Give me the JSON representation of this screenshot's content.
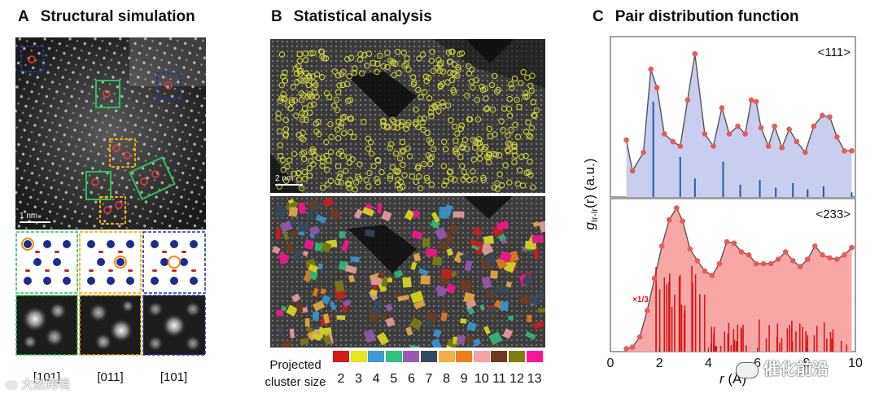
{
  "panels": {
    "a": {
      "letter": "A",
      "title": "Structural simulation",
      "scale_bar": "1 nm",
      "orientations": [
        "[101]",
        "[011]",
        "[101]"
      ]
    },
    "b": {
      "letter": "B",
      "title": "Statistical analysis",
      "scale_bar": "2 nm",
      "legend_title_line1": "Projected",
      "legend_title_line2": "cluster size",
      "legend": [
        {
          "size": "2",
          "color": "#d7191c"
        },
        {
          "size": "3",
          "color": "#e6e619"
        },
        {
          "size": "4",
          "color": "#3a9ad9"
        },
        {
          "size": "5",
          "color": "#2ec27e"
        },
        {
          "size": "6",
          "color": "#9b59b6"
        },
        {
          "size": "7",
          "color": "#34495e"
        },
        {
          "size": "8",
          "color": "#f5b041"
        },
        {
          "size": "9",
          "color": "#ef7f1a"
        },
        {
          "size": "10",
          "color": "#f4a3a3"
        },
        {
          "size": "11",
          "color": "#6e3b1e"
        },
        {
          "size": "12",
          "color": "#7f7f0f"
        },
        {
          "size": "13",
          "color": "#ff1493"
        }
      ]
    },
    "c": {
      "letter": "C",
      "title": "Pair distribution function"
    }
  },
  "watermark_left": "大数跨境",
  "watermark_right": "催化前沿",
  "chart_data": [
    {
      "type": "area",
      "annotation": "<111>",
      "xlabel": "r (Å)",
      "ylabel": "g_Ir-Ir(r) (a.u.)",
      "xlim": [
        0,
        10
      ],
      "ylim": [
        0,
        1
      ],
      "x": [
        0.65,
        0.9,
        1.35,
        1.65,
        1.9,
        2.2,
        2.55,
        2.85,
        3.15,
        3.45,
        3.85,
        4.2,
        4.55,
        4.85,
        5.2,
        5.5,
        5.75,
        5.95,
        6.15,
        6.45,
        6.7,
        7.0,
        7.3,
        7.6,
        7.95,
        8.3,
        8.65,
        8.95,
        9.25,
        9.55,
        9.85
      ],
      "y": [
        0.37,
        0.17,
        0.29,
        0.83,
        0.71,
        0.41,
        0.36,
        0.33,
        0.63,
        0.93,
        0.41,
        0.33,
        0.58,
        0.41,
        0.46,
        0.41,
        0.63,
        0.62,
        0.45,
        0.33,
        0.46,
        0.32,
        0.44,
        0.36,
        0.29,
        0.46,
        0.53,
        0.52,
        0.39,
        0.3,
        0.3
      ],
      "stems": [
        {
          "x": 1.75,
          "h": 0.62
        },
        {
          "x": 2.85,
          "h": 0.26
        },
        {
          "x": 3.45,
          "h": 0.12
        },
        {
          "x": 4.6,
          "h": 0.23
        },
        {
          "x": 5.3,
          "h": 0.08
        },
        {
          "x": 6.1,
          "h": 0.11
        },
        {
          "x": 6.75,
          "h": 0.06
        },
        {
          "x": 7.45,
          "h": 0.09
        },
        {
          "x": 8.05,
          "h": 0.05
        },
        {
          "x": 8.7,
          "h": 0.07
        },
        {
          "x": 9.85,
          "h": 0.03
        }
      ]
    },
    {
      "type": "area",
      "annotation": "<233>",
      "data_label": "×1/3",
      "xlabel": "r (Å)",
      "ylabel": "g_Ir-Ir(r) (a.u.)",
      "xlim": [
        0,
        10
      ],
      "ylim": [
        0,
        1
      ],
      "xticks": [
        0,
        2,
        4,
        6,
        8,
        10
      ],
      "x": [
        0.65,
        0.9,
        1.2,
        1.5,
        1.8,
        2.1,
        2.4,
        2.7,
        2.95,
        3.25,
        3.55,
        3.85,
        4.15,
        4.45,
        4.75,
        5.05,
        5.35,
        5.65,
        5.95,
        6.25,
        6.55,
        6.85,
        7.15,
        7.45,
        7.75,
        8.05,
        8.35,
        8.65,
        8.95,
        9.25,
        9.55,
        9.85
      ],
      "y": [
        0.02,
        0.03,
        0.1,
        0.28,
        0.5,
        0.72,
        0.9,
        0.98,
        0.89,
        0.7,
        0.62,
        0.55,
        0.52,
        0.6,
        0.75,
        0.74,
        0.68,
        0.66,
        0.6,
        0.6,
        0.6,
        0.63,
        0.68,
        0.62,
        0.58,
        0.63,
        0.72,
        0.66,
        0.64,
        0.63,
        0.66,
        0.71
      ]
    }
  ]
}
